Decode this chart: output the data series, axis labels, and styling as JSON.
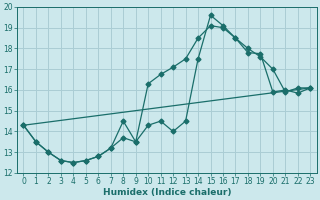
{
  "xlabel": "Humidex (Indice chaleur)",
  "bg_color": "#cce8ec",
  "grid_color": "#aacdd4",
  "line_color": "#1a6e6a",
  "xlim": [
    -0.5,
    23.5
  ],
  "ylim": [
    12,
    20
  ],
  "yticks": [
    12,
    13,
    14,
    15,
    16,
    17,
    18,
    19,
    20
  ],
  "xticks": [
    0,
    1,
    2,
    3,
    4,
    5,
    6,
    7,
    8,
    9,
    10,
    11,
    12,
    13,
    14,
    15,
    16,
    17,
    18,
    19,
    20,
    21,
    22,
    23
  ],
  "line1_x": [
    0,
    1,
    2,
    3,
    4,
    5,
    6,
    7,
    8,
    9,
    10,
    11,
    12,
    13,
    14,
    15,
    16,
    17,
    18,
    19,
    20,
    21,
    22,
    23
  ],
  "line1_y": [
    14.3,
    13.5,
    13.0,
    12.6,
    12.5,
    12.6,
    12.8,
    13.2,
    14.5,
    13.5,
    16.3,
    16.75,
    17.1,
    17.5,
    18.5,
    19.1,
    19.0,
    18.5,
    17.8,
    17.75,
    15.9,
    16.0,
    15.85,
    16.1
  ],
  "line2_x": [
    0,
    1,
    2,
    3,
    4,
    5,
    6,
    7,
    8,
    9,
    10,
    11,
    12,
    13,
    14,
    15,
    16,
    17,
    18,
    19,
    20,
    21,
    22,
    23
  ],
  "line2_y": [
    14.3,
    13.5,
    13.0,
    12.6,
    12.5,
    12.6,
    12.8,
    13.2,
    13.7,
    13.5,
    14.3,
    14.5,
    14.0,
    14.5,
    17.5,
    19.6,
    19.1,
    18.5,
    18.0,
    17.6,
    17.0,
    15.9,
    16.1,
    16.1
  ],
  "line3_x": [
    0,
    23
  ],
  "line3_y": [
    14.3,
    16.1
  ]
}
